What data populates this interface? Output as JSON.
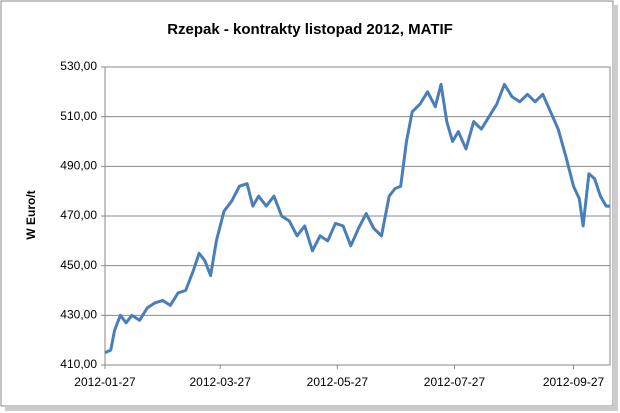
{
  "chart_data": {
    "type": "line",
    "title": "Rzepak - kontrakty listopad 2012, MATIF",
    "y_label": "W Euro/t",
    "x": [
      "2012-01-27",
      "2012-01-30",
      "2012-02-01",
      "2012-02-04",
      "2012-02-07",
      "2012-02-10",
      "2012-02-14",
      "2012-02-18",
      "2012-02-22",
      "2012-02-26",
      "2012-03-01",
      "2012-03-05",
      "2012-03-09",
      "2012-03-13",
      "2012-03-16",
      "2012-03-19",
      "2012-03-22",
      "2012-03-25",
      "2012-03-29",
      "2012-04-02",
      "2012-04-06",
      "2012-04-10",
      "2012-04-13",
      "2012-04-16",
      "2012-04-20",
      "2012-04-24",
      "2012-04-28",
      "2012-05-02",
      "2012-05-06",
      "2012-05-10",
      "2012-05-14",
      "2012-05-18",
      "2012-05-22",
      "2012-05-26",
      "2012-05-30",
      "2012-06-03",
      "2012-06-07",
      "2012-06-11",
      "2012-06-15",
      "2012-06-19",
      "2012-06-23",
      "2012-06-26",
      "2012-06-29",
      "2012-07-02",
      "2012-07-05",
      "2012-07-09",
      "2012-07-13",
      "2012-07-17",
      "2012-07-20",
      "2012-07-23",
      "2012-07-26",
      "2012-07-29",
      "2012-08-02",
      "2012-08-06",
      "2012-08-10",
      "2012-08-14",
      "2012-08-18",
      "2012-08-22",
      "2012-08-26",
      "2012-08-30",
      "2012-09-03",
      "2012-09-07",
      "2012-09-11",
      "2012-09-15",
      "2012-09-19",
      "2012-09-23",
      "2012-09-27",
      "2012-09-30",
      "2012-10-02",
      "2012-10-05",
      "2012-10-08",
      "2012-10-11",
      "2012-10-14",
      "2012-10-16"
    ],
    "series": [
      {
        "name": "Rzepak",
        "color": "#4a7ebb",
        "values": [
          415,
          416,
          424,
          430,
          427,
          430,
          428,
          433,
          435,
          436,
          434,
          439,
          440,
          448,
          455,
          452,
          446,
          460,
          472,
          476,
          482,
          483,
          474,
          478,
          474,
          478,
          470,
          468,
          462,
          466,
          456,
          462,
          460,
          467,
          466,
          458,
          465,
          471,
          465,
          462,
          478,
          481,
          482,
          500,
          512,
          515,
          520,
          514,
          523,
          508,
          500,
          504,
          497,
          508,
          505,
          510,
          515,
          523,
          518,
          516,
          519,
          516,
          519,
          512,
          505,
          494,
          482,
          477,
          466,
          487,
          485,
          478,
          474,
          474
        ]
      }
    ],
    "xlim": [
      "2012-01-27",
      "2012-10-16"
    ],
    "xticks": [
      "2012-01-27",
      "2012-03-27",
      "2012-05-27",
      "2012-07-27",
      "2012-09-27"
    ],
    "ylim": [
      410,
      530
    ],
    "yticks": [
      {
        "value": 410,
        "label": "410,00"
      },
      {
        "value": 430,
        "label": "430,00"
      },
      {
        "value": 450,
        "label": "450,00"
      },
      {
        "value": 470,
        "label": "470,00"
      },
      {
        "value": 490,
        "label": "490,00"
      },
      {
        "value": 510,
        "label": "510,00"
      },
      {
        "value": 530,
        "label": "530,00"
      }
    ],
    "grid": true
  }
}
